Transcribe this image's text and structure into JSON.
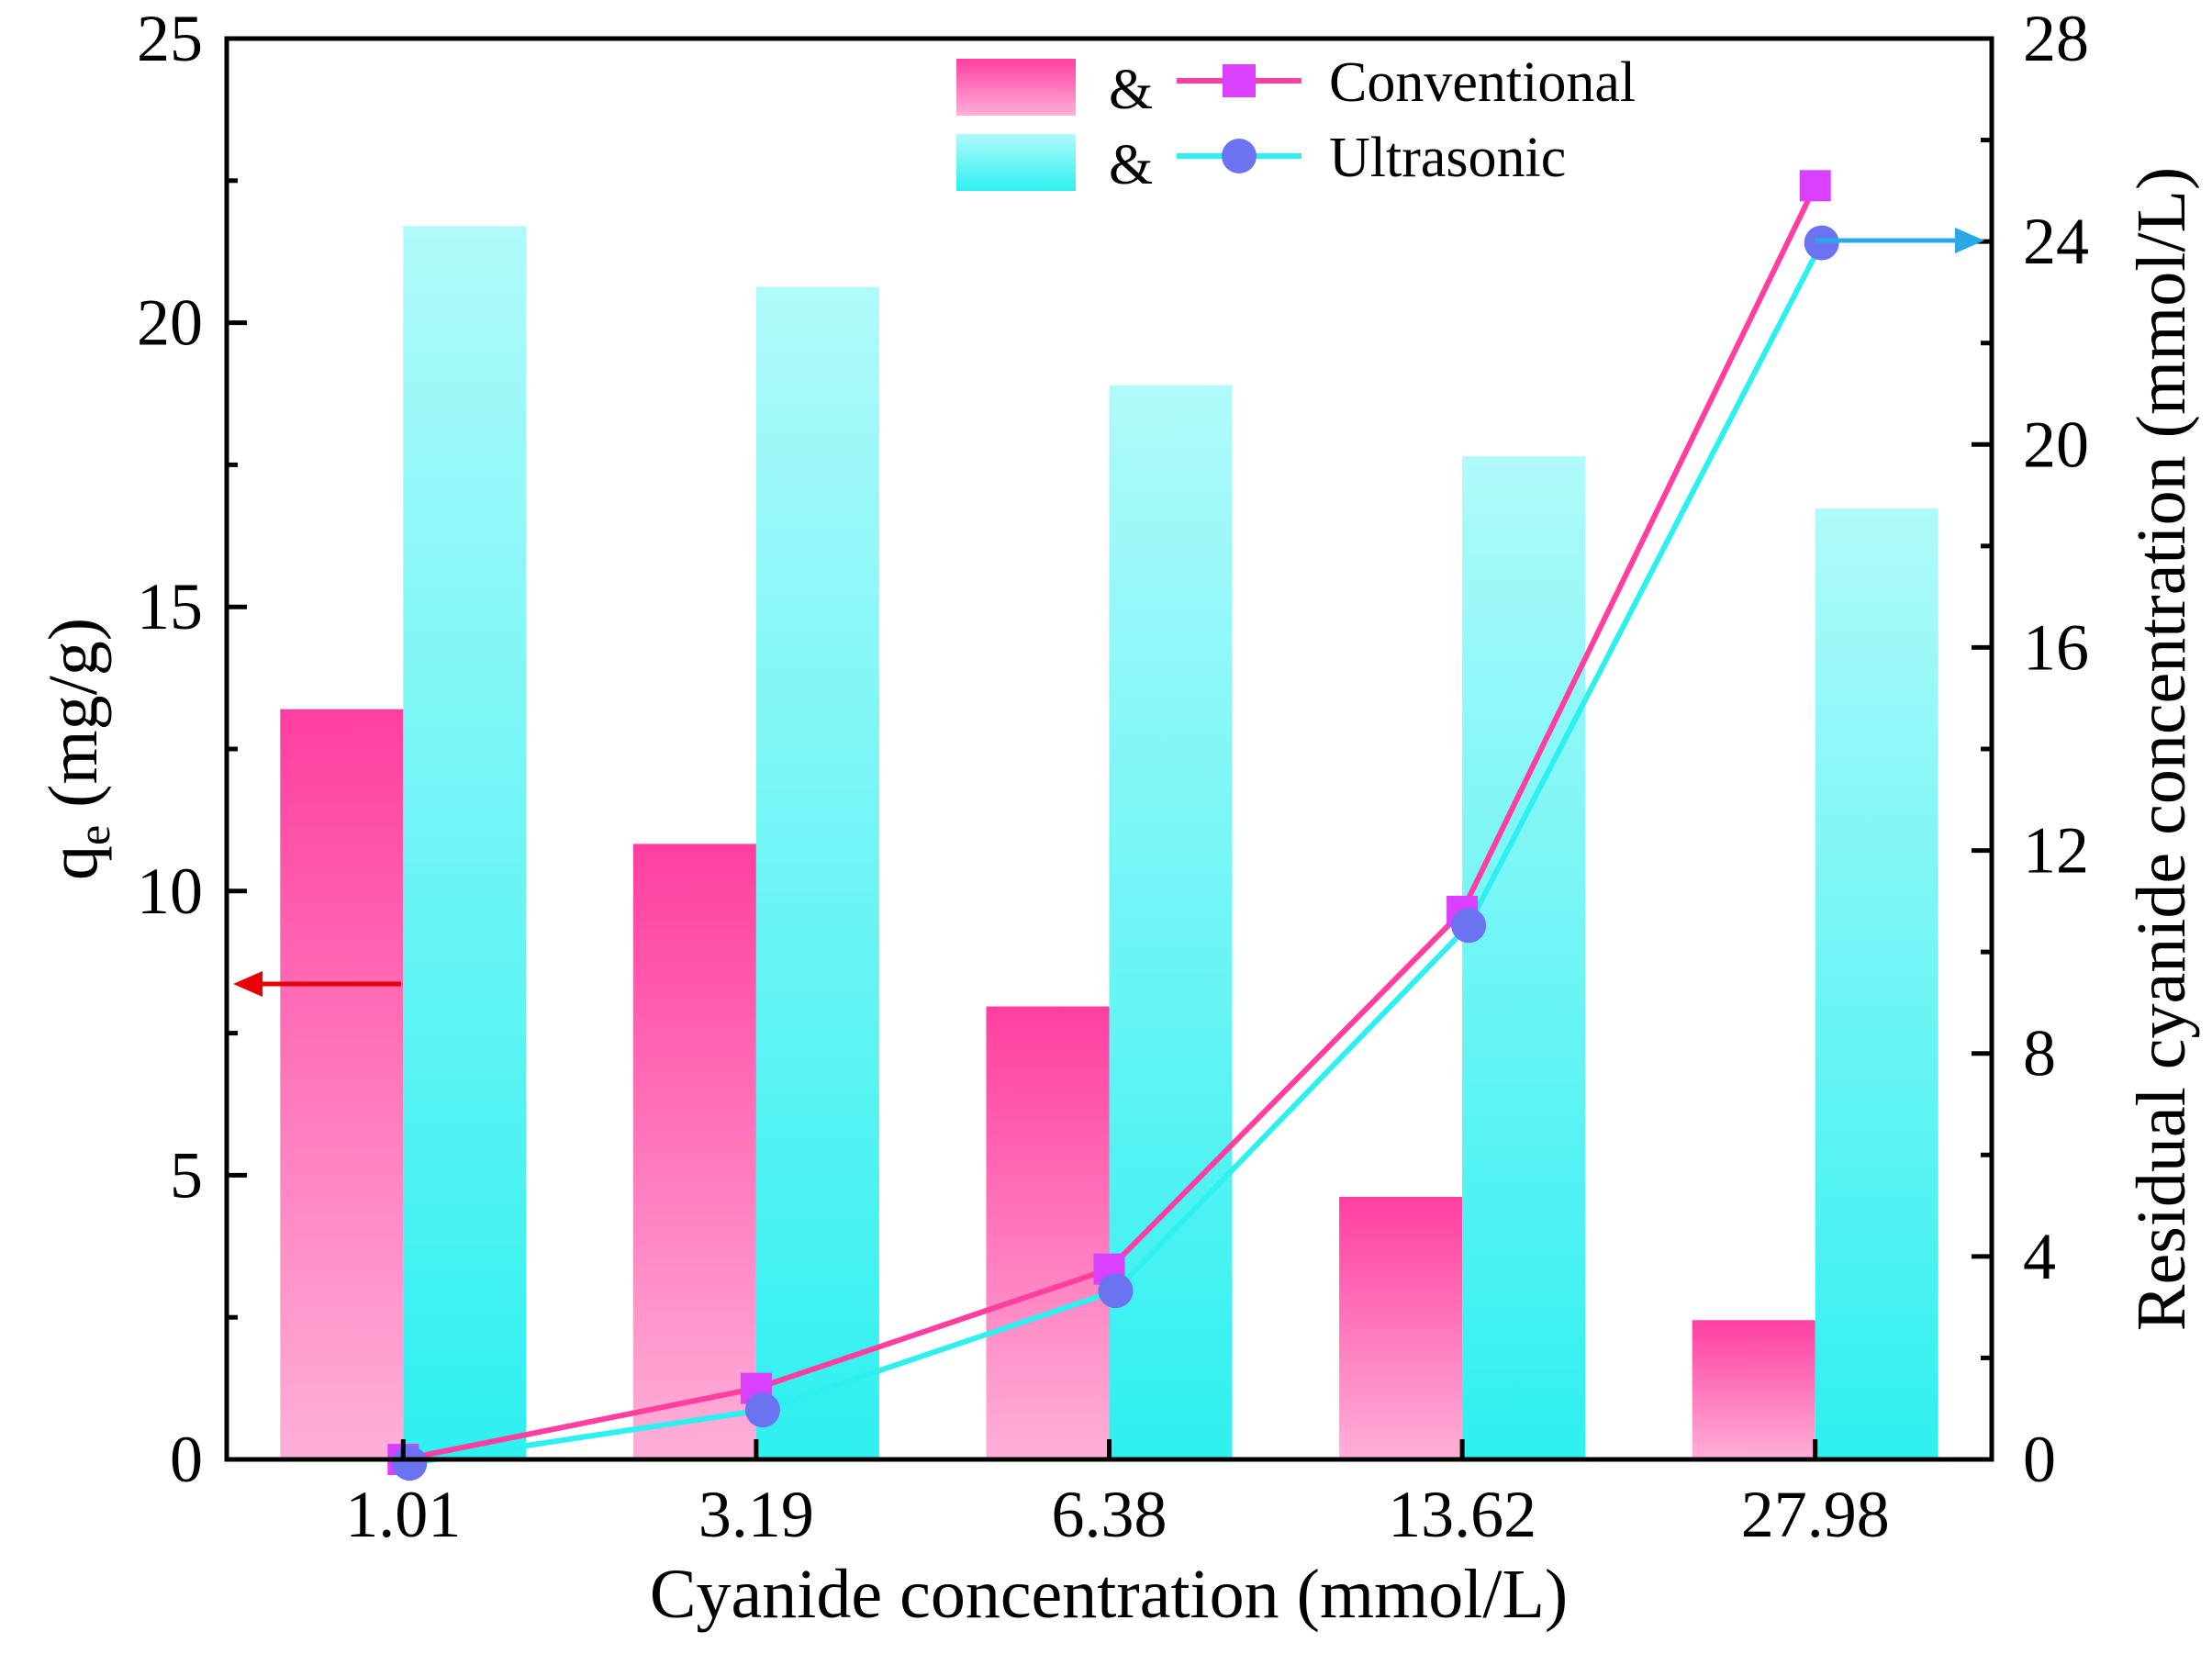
{
  "chart_data": {
    "type": "bar",
    "categories": [
      "1.01",
      "3.19",
      "6.38",
      "13.62",
      "27.98"
    ],
    "bar_series": [
      {
        "name": "Conventional",
        "values": [
          13.2,
          10.83,
          7.97,
          4.62,
          2.45
        ],
        "color_top": "#ff3fa0",
        "color_bottom": "#ffb0d8"
      },
      {
        "name": "Ultrasonic",
        "values": [
          21.7,
          20.63,
          18.9,
          17.65,
          16.73
        ],
        "color_top": "#b0fafa",
        "color_bottom": "#2ff0f0"
      }
    ],
    "line_series": [
      {
        "name": "Conventional",
        "values": [
          0,
          1.4,
          3.75,
          10.8,
          25.1
        ],
        "line_color": "#ff3ea0",
        "marker_color": "#d940ff",
        "marker": "square"
      },
      {
        "name": "Ultrasonic",
        "values": [
          0,
          1.05,
          3.4,
          10.6,
          24.05
        ],
        "line_color": "#2ff0f0",
        "marker_color": "#6b73f0",
        "marker": "circle"
      }
    ],
    "xlabel": "Cyanide concentration (mmol/L)",
    "ylabel": {
      "main": "q",
      "sub": "e",
      "unit": " (mg/g)"
    },
    "y2label": "Residual cyanide concentration (mmol/L)",
    "ylim": [
      0,
      25
    ],
    "y2lim": [
      0,
      28
    ],
    "yticks": [
      "0",
      "5",
      "10",
      "15",
      "20",
      "25"
    ],
    "y2ticks": [
      "0",
      "4",
      "8",
      "12",
      "16",
      "20",
      "24",
      "28"
    ],
    "legend": {
      "entries": [
        {
          "amp": "&",
          "label": "Conventional"
        },
        {
          "amp": "&",
          "label": "Ultrasonic"
        }
      ],
      "position": "top-center"
    },
    "annotations": [
      {
        "type": "arrow",
        "direction": "left",
        "color": "#e60000",
        "meaning": "bars read on left axis"
      },
      {
        "type": "arrow",
        "direction": "right",
        "color": "#29a8e8",
        "meaning": "lines read on right axis"
      }
    ]
  }
}
